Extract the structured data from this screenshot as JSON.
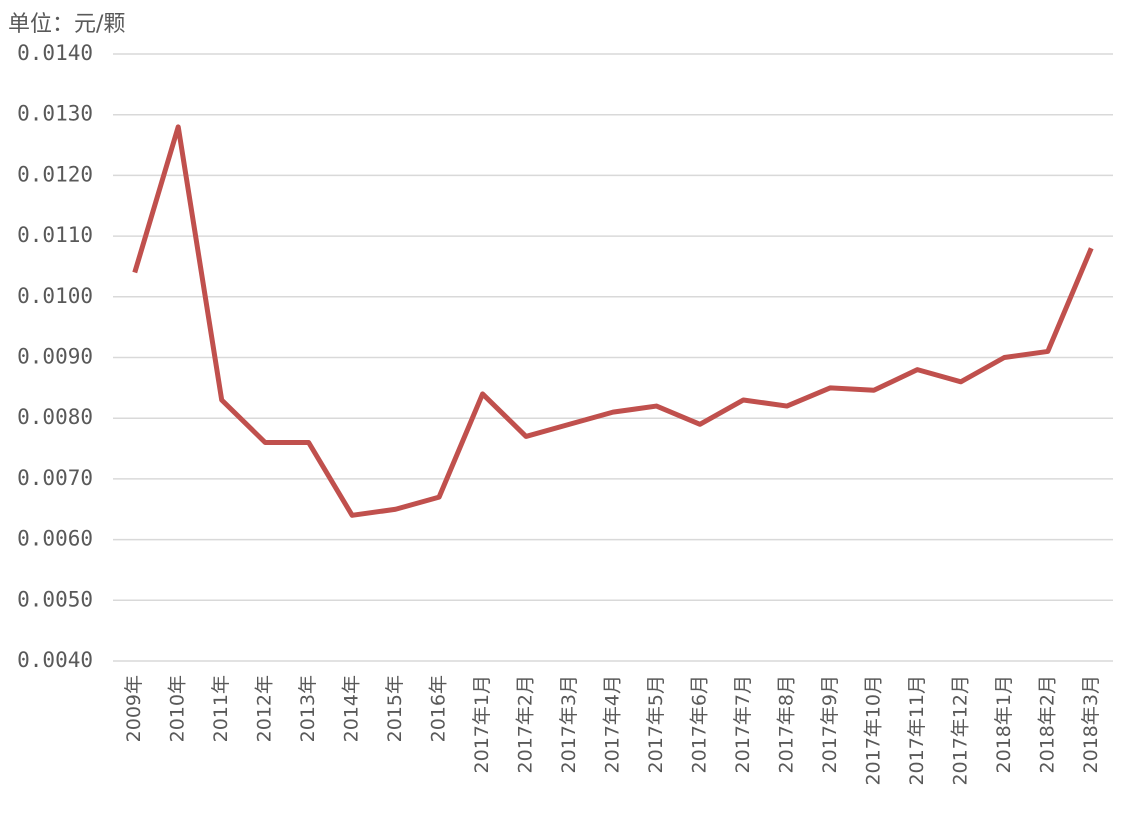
{
  "chart_data": {
    "type": "line",
    "unit_label": "单位：元/颗",
    "categories": [
      "2009年",
      "2010年",
      "2011年",
      "2012年",
      "2013年",
      "2014年",
      "2015年",
      "2016年",
      "2017年1月",
      "2017年2月",
      "2017年3月",
      "2017年4月",
      "2017年5月",
      "2017年6月",
      "2017年7月",
      "2017年8月",
      "2017年9月",
      "2017年10月",
      "2017年11月",
      "2017年12月",
      "2018年1月",
      "2018年2月",
      "2018年3月"
    ],
    "series": [
      {
        "color": "#c0504d",
        "values": [
          0.0104,
          0.0128,
          0.0083,
          0.0076,
          0.0076,
          0.0064,
          0.0065,
          0.0067,
          0.0084,
          0.0077,
          0.0079,
          0.0081,
          0.0082,
          0.0079,
          0.0083,
          0.0082,
          0.0085,
          0.00846,
          0.0088,
          0.0086,
          0.009,
          0.0091,
          0.0108
        ]
      }
    ],
    "ylim": [
      0.004,
      0.014
    ],
    "yticks": [
      {
        "value": 0.004,
        "label": "0.0040"
      },
      {
        "value": 0.005,
        "label": "0.0050"
      },
      {
        "value": 0.006,
        "label": "0.0060"
      },
      {
        "value": 0.007,
        "label": "0.0070"
      },
      {
        "value": 0.008,
        "label": "0.0080"
      },
      {
        "value": 0.009,
        "label": "0.0090"
      },
      {
        "value": 0.01,
        "label": "0.0100"
      },
      {
        "value": 0.011,
        "label": "0.0110"
      },
      {
        "value": 0.012,
        "label": "0.0120"
      },
      {
        "value": 0.013,
        "label": "0.0130"
      },
      {
        "value": 0.014,
        "label": "0.0140"
      }
    ],
    "grid": true
  }
}
